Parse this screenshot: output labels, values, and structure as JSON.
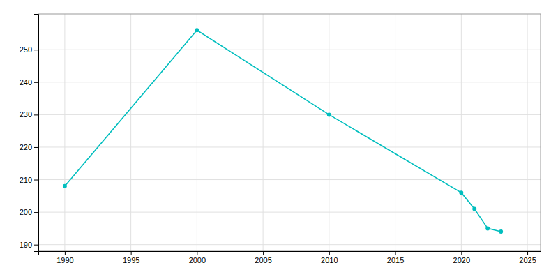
{
  "chart_data": {
    "type": "line",
    "x": [
      1990,
      2000,
      2010,
      2020,
      2021,
      2022,
      2023
    ],
    "values": [
      208,
      256,
      230,
      206,
      201,
      195,
      194
    ],
    "color": "#00BEBE",
    "marker": "circle",
    "xlim": [
      1988,
      2026
    ],
    "ylim": [
      188,
      261
    ],
    "xticks": [
      1990,
      1995,
      2000,
      2005,
      2010,
      2015,
      2020,
      2025
    ],
    "yticks": [
      190,
      200,
      210,
      220,
      230,
      240,
      250
    ],
    "grid": true
  }
}
